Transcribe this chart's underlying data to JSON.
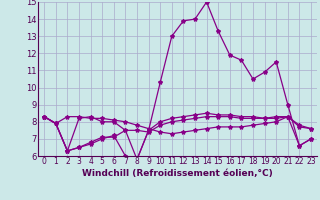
{
  "xlabel": "Windchill (Refroidissement éolien,°C)",
  "background_color": "#cce8e8",
  "grid_color": "#aaaacc",
  "line_color": "#880088",
  "xlim": [
    -0.5,
    23.5
  ],
  "ylim": [
    6,
    15
  ],
  "xticks": [
    0,
    1,
    2,
    3,
    4,
    5,
    6,
    7,
    8,
    9,
    10,
    11,
    12,
    13,
    14,
    15,
    16,
    17,
    18,
    19,
    20,
    21,
    22,
    23
  ],
  "yticks": [
    6,
    7,
    8,
    9,
    10,
    11,
    12,
    13,
    14,
    15
  ],
  "series": [
    [
      8.3,
      7.9,
      8.3,
      8.3,
      8.2,
      8.2,
      8.1,
      8.0,
      7.8,
      7.6,
      7.4,
      7.3,
      7.4,
      7.5,
      7.6,
      7.7,
      7.7,
      7.7,
      7.8,
      7.9,
      8.0,
      8.3,
      6.6,
      7.0
    ],
    [
      8.3,
      7.9,
      6.3,
      6.5,
      6.8,
      7.1,
      7.1,
      7.5,
      5.8,
      7.5,
      10.3,
      13.0,
      13.9,
      14.0,
      15.0,
      13.3,
      11.9,
      11.6,
      10.5,
      10.9,
      11.5,
      9.0,
      6.6,
      7.0
    ],
    [
      8.3,
      7.9,
      6.3,
      8.2,
      8.3,
      8.0,
      8.0,
      7.5,
      7.5,
      7.4,
      7.8,
      8.0,
      8.1,
      8.2,
      8.3,
      8.3,
      8.3,
      8.2,
      8.2,
      8.2,
      8.2,
      8.3,
      7.7,
      7.6
    ],
    [
      8.3,
      7.9,
      6.3,
      6.5,
      6.7,
      7.0,
      7.2,
      6.0,
      5.8,
      7.5,
      8.0,
      8.2,
      8.3,
      8.4,
      8.5,
      8.4,
      8.4,
      8.3,
      8.3,
      8.2,
      8.3,
      8.3,
      7.8,
      7.6
    ]
  ],
  "marker": "*",
  "markersize": 3,
  "linewidth": 0.9,
  "xlabel_fontsize": 6.5,
  "tick_fontsize_x": 5.5,
  "tick_fontsize_y": 6.0
}
